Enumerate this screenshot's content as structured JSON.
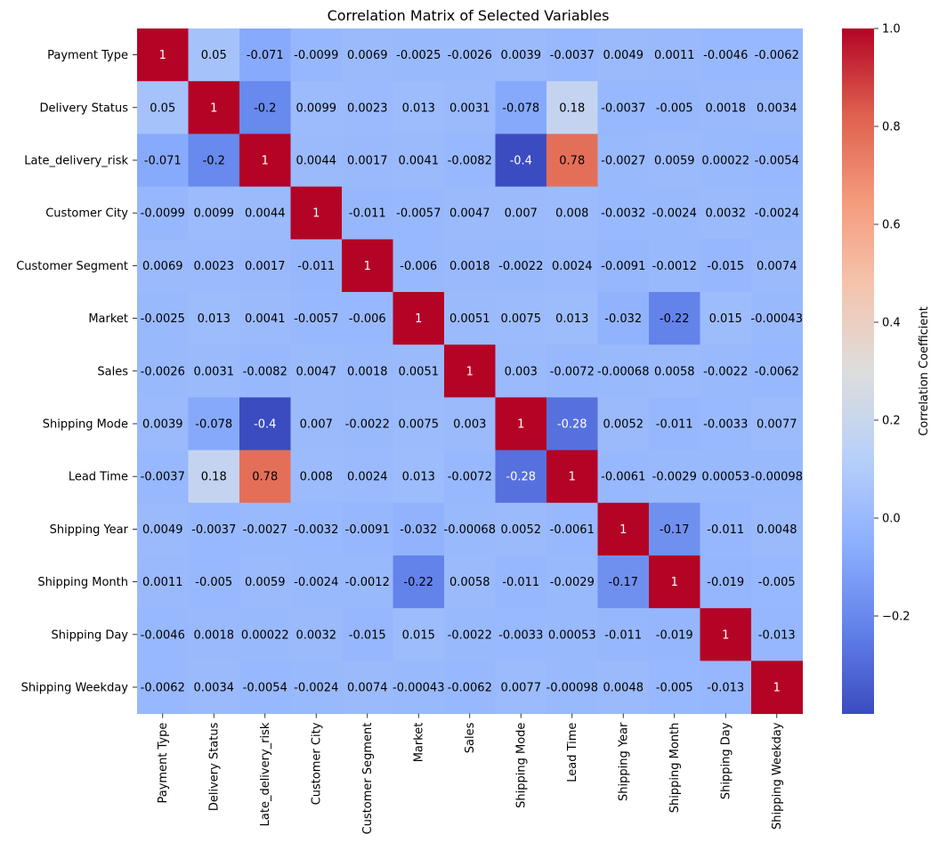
{
  "chart_data": {
    "type": "heatmap",
    "title": "Correlation Matrix of Selected Variables",
    "xlabel": "",
    "ylabel": "",
    "colormap": "coolwarm",
    "vmin": -0.4,
    "vmax": 1.0,
    "variables": [
      "Payment Type",
      "Delivery Status",
      "Late_delivery_risk",
      "Customer City",
      "Customer Segment",
      "Market",
      "Sales",
      "Shipping Mode",
      "Lead Time",
      "Shipping Year",
      "Shipping Month",
      "Shipping Day",
      "Shipping Weekday"
    ],
    "values": [
      [
        1,
        0.05,
        -0.071,
        -0.0099,
        0.0069,
        -0.0025,
        -0.0026,
        0.0039,
        -0.0037,
        0.0049,
        0.0011,
        -0.0046,
        -0.0062
      ],
      [
        0.05,
        1,
        -0.2,
        0.0099,
        0.0023,
        0.013,
        0.0031,
        -0.078,
        0.18,
        -0.0037,
        -0.005,
        0.0018,
        0.0034
      ],
      [
        -0.071,
        -0.2,
        1,
        0.0044,
        0.0017,
        0.0041,
        -0.0082,
        -0.4,
        0.78,
        -0.0027,
        0.0059,
        0.00022,
        -0.0054
      ],
      [
        -0.0099,
        0.0099,
        0.0044,
        1,
        -0.011,
        -0.0057,
        0.0047,
        0.007,
        0.008,
        -0.0032,
        -0.0024,
        0.0032,
        -0.0024
      ],
      [
        0.0069,
        0.0023,
        0.0017,
        -0.011,
        1,
        -0.006,
        0.0018,
        -0.0022,
        0.0024,
        -0.0091,
        -0.0012,
        -0.015,
        0.0074
      ],
      [
        -0.0025,
        0.013,
        0.0041,
        -0.0057,
        -0.006,
        1,
        0.0051,
        0.0075,
        0.013,
        -0.032,
        -0.22,
        0.015,
        -0.00043
      ],
      [
        -0.0026,
        0.0031,
        -0.0082,
        0.0047,
        0.0018,
        0.0051,
        1,
        0.003,
        -0.0072,
        -0.00068,
        0.0058,
        -0.0022,
        -0.0062
      ],
      [
        0.0039,
        -0.078,
        -0.4,
        0.007,
        -0.0022,
        0.0075,
        0.003,
        1,
        -0.28,
        0.0052,
        -0.011,
        -0.0033,
        0.0077
      ],
      [
        -0.0037,
        0.18,
        0.78,
        0.008,
        0.0024,
        0.013,
        -0.0072,
        -0.28,
        1,
        -0.0061,
        -0.0029,
        0.00053,
        -0.00098
      ],
      [
        0.0049,
        -0.0037,
        -0.0027,
        -0.0032,
        -0.0091,
        -0.032,
        -0.00068,
        0.0052,
        -0.0061,
        1,
        -0.17,
        -0.011,
        0.0048
      ],
      [
        0.0011,
        -0.005,
        0.0059,
        -0.0024,
        -0.0012,
        -0.22,
        0.0058,
        -0.011,
        -0.0029,
        -0.17,
        1,
        -0.019,
        -0.005
      ],
      [
        -0.0046,
        0.0018,
        0.00022,
        0.0032,
        -0.015,
        0.015,
        -0.0022,
        -0.0033,
        0.00053,
        -0.011,
        -0.019,
        1,
        -0.013
      ],
      [
        -0.0062,
        0.0034,
        -0.0054,
        -0.0024,
        0.0074,
        -0.00043,
        -0.0062,
        0.0077,
        -0.00098,
        0.0048,
        -0.005,
        -0.013,
        1
      ]
    ],
    "colorbar": {
      "label": "Correlation Coefficient",
      "ticks": [
        -0.2,
        0.0,
        0.2,
        0.4,
        0.6,
        0.8,
        1.0
      ],
      "tick_labels": [
        "−0.2",
        "0.0",
        "0.2",
        "0.4",
        "0.6",
        "0.8",
        "1.0"
      ]
    }
  }
}
